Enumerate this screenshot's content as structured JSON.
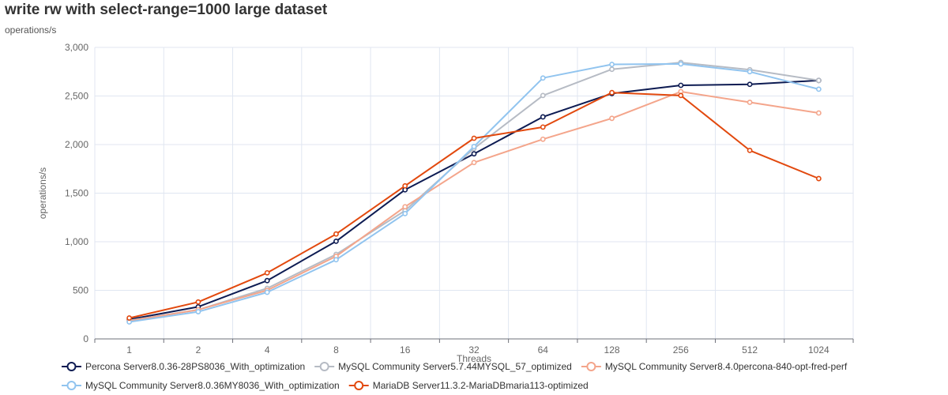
{
  "title": "write rw with select-range=1000 large dataset",
  "subtitle": "operations/s",
  "chart_data": {
    "type": "line",
    "xlabel": "Threads",
    "ylabel": "operations/s",
    "categories": [
      "1",
      "2",
      "4",
      "8",
      "16",
      "32",
      "64",
      "128",
      "256",
      "512",
      "1024"
    ],
    "ylim": [
      0,
      3000
    ],
    "yticks": [
      0,
      500,
      1000,
      1500,
      2000,
      2500,
      3000
    ],
    "ytick_labels": [
      "0",
      "500",
      "1,000",
      "1,500",
      "2,000",
      "2,500",
      "3,000"
    ],
    "grid": true,
    "legend_position": "bottom-left",
    "series": [
      {
        "name": "Percona Server8.0.36-28PS8036_With_optimization",
        "color": "#0d1b52",
        "values": [
          200,
          330,
          600,
          1005,
          1535,
          1905,
          2285,
          2525,
          2610,
          2620,
          2660
        ]
      },
      {
        "name": "MySQL Community Server5.7.44MYSQL_57_optimized",
        "color": "#b6bbc4",
        "values": [
          190,
          300,
          520,
          870,
          1320,
          1960,
          2505,
          2775,
          2845,
          2770,
          2660
        ]
      },
      {
        "name": "MySQL Community Server8.4.0percona-840-opt-fred-perf",
        "color": "#f4a58b",
        "values": [
          185,
          300,
          500,
          850,
          1360,
          1815,
          2055,
          2270,
          2545,
          2435,
          2325
        ]
      },
      {
        "name": "MySQL Community Server8.0.36MY8036_With_optimization",
        "color": "#91c4ef",
        "values": [
          175,
          280,
          480,
          815,
          1290,
          1980,
          2685,
          2825,
          2830,
          2750,
          2570
        ]
      },
      {
        "name": "MariaDB Server11.3.2-MariaDBmaria113-optimized",
        "color": "#e2490e",
        "values": [
          215,
          380,
          680,
          1080,
          1575,
          2065,
          2180,
          2535,
          2505,
          1940,
          1650
        ]
      }
    ]
  }
}
